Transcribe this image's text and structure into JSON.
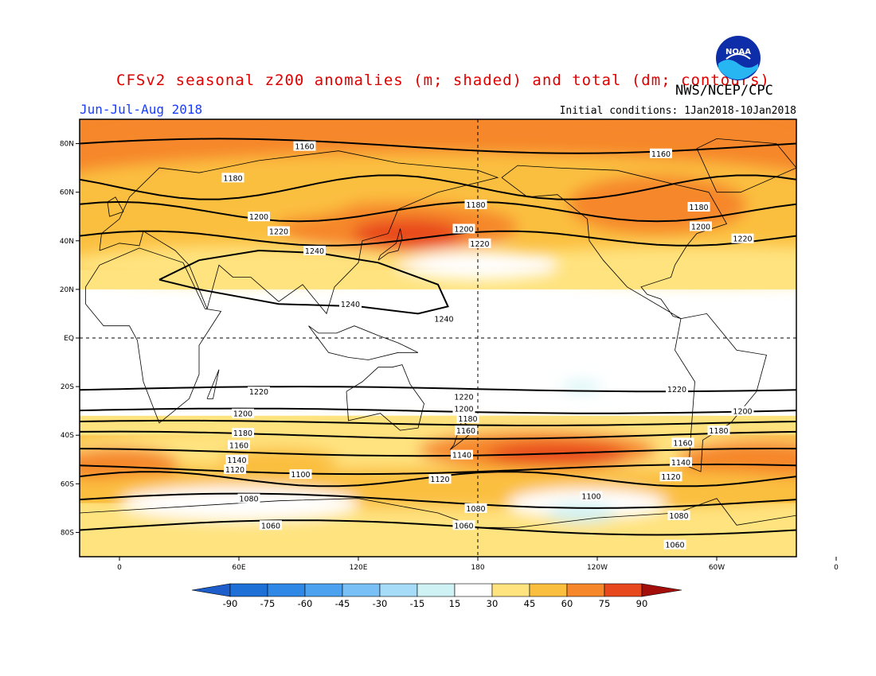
{
  "header": {
    "title": "CFSv2 seasonal z200 anomalies (m; shaded) and total (dm; contours)",
    "period": "Jun-Jul-Aug 2018",
    "initial_conditions": "Initial conditions: 1Jan2018-10Jan2018",
    "agency": "NWS/NCEP/CPC",
    "logo_text": "NOAA",
    "title_color": "#e00000",
    "period_color": "#1a3cff"
  },
  "map": {
    "projection": "cylindrical equidistant",
    "lon_labels": [
      "0",
      "60E",
      "120E",
      "180",
      "120W",
      "60W",
      "0"
    ],
    "lat_labels": [
      "80N",
      "60N",
      "40N",
      "20N",
      "EQ",
      "20S",
      "40S",
      "60S",
      "80S"
    ],
    "contour_labels": [
      {
        "text": "1160",
        "lon": 93,
        "lat": 79
      },
      {
        "text": "1160",
        "lon": 272,
        "lat": 76
      },
      {
        "text": "1180",
        "lon": 57,
        "lat": 66
      },
      {
        "text": "1180",
        "lon": 179,
        "lat": 55
      },
      {
        "text": "1180",
        "lon": 291,
        "lat": 54
      },
      {
        "text": "1200",
        "lon": 70,
        "lat": 50
      },
      {
        "text": "1200",
        "lon": 173,
        "lat": 45
      },
      {
        "text": "1200",
        "lon": 292,
        "lat": 46
      },
      {
        "text": "1220",
        "lon": 80,
        "lat": 44
      },
      {
        "text": "1220",
        "lon": 181,
        "lat": 39
      },
      {
        "text": "1220",
        "lon": 313,
        "lat": 41
      },
      {
        "text": "1240",
        "lon": 98,
        "lat": 36
      },
      {
        "text": "1240",
        "lon": 116,
        "lat": 14
      },
      {
        "text": "1240",
        "lon": 163,
        "lat": 8
      },
      {
        "text": "1220",
        "lon": 70,
        "lat": -22
      },
      {
        "text": "1220",
        "lon": 173,
        "lat": -24
      },
      {
        "text": "1220",
        "lon": 280,
        "lat": -21
      },
      {
        "text": "1200",
        "lon": 62,
        "lat": -31
      },
      {
        "text": "1200",
        "lon": 173,
        "lat": -29
      },
      {
        "text": "1200",
        "lon": 313,
        "lat": -30
      },
      {
        "text": "1180",
        "lon": 175,
        "lat": -33
      },
      {
        "text": "1180",
        "lon": 62,
        "lat": -39
      },
      {
        "text": "1180",
        "lon": 301,
        "lat": -38
      },
      {
        "text": "1160",
        "lon": 174,
        "lat": -38
      },
      {
        "text": "1160",
        "lon": 60,
        "lat": -44
      },
      {
        "text": "1160",
        "lon": 283,
        "lat": -43
      },
      {
        "text": "1140",
        "lon": 59,
        "lat": -50
      },
      {
        "text": "1140",
        "lon": 172,
        "lat": -48
      },
      {
        "text": "1140",
        "lon": 282,
        "lat": -51
      },
      {
        "text": "1120",
        "lon": 58,
        "lat": -54
      },
      {
        "text": "1120",
        "lon": 161,
        "lat": -58
      },
      {
        "text": "1120",
        "lon": 277,
        "lat": -57
      },
      {
        "text": "1100",
        "lon": 91,
        "lat": -56
      },
      {
        "text": "1100",
        "lon": 237,
        "lat": -65
      },
      {
        "text": "1080",
        "lon": 65,
        "lat": -66
      },
      {
        "text": "1080",
        "lon": 179,
        "lat": -70
      },
      {
        "text": "1080",
        "lon": 281,
        "lat": -73
      },
      {
        "text": "1060",
        "lon": 76,
        "lat": -77
      },
      {
        "text": "1060",
        "lon": 173,
        "lat": -77
      },
      {
        "text": "1060",
        "lon": 279,
        "lat": -85
      }
    ]
  },
  "colorbar": {
    "labels": [
      "-90",
      "-75",
      "-60",
      "-45",
      "-30",
      "-15",
      "15",
      "30",
      "45",
      "60",
      "75",
      "90"
    ],
    "colors": [
      "#1e6fd6",
      "#2f87e6",
      "#4da2f0",
      "#79c0f7",
      "#a6dcf7",
      "#cff2f5",
      "#ffffff",
      "#ffe37f",
      "#fbbf3f",
      "#f6872b",
      "#e8481e",
      "#c81613"
    ],
    "left_arrow_color": "#1e5ecb",
    "right_arrow_color": "#a30e0a"
  }
}
